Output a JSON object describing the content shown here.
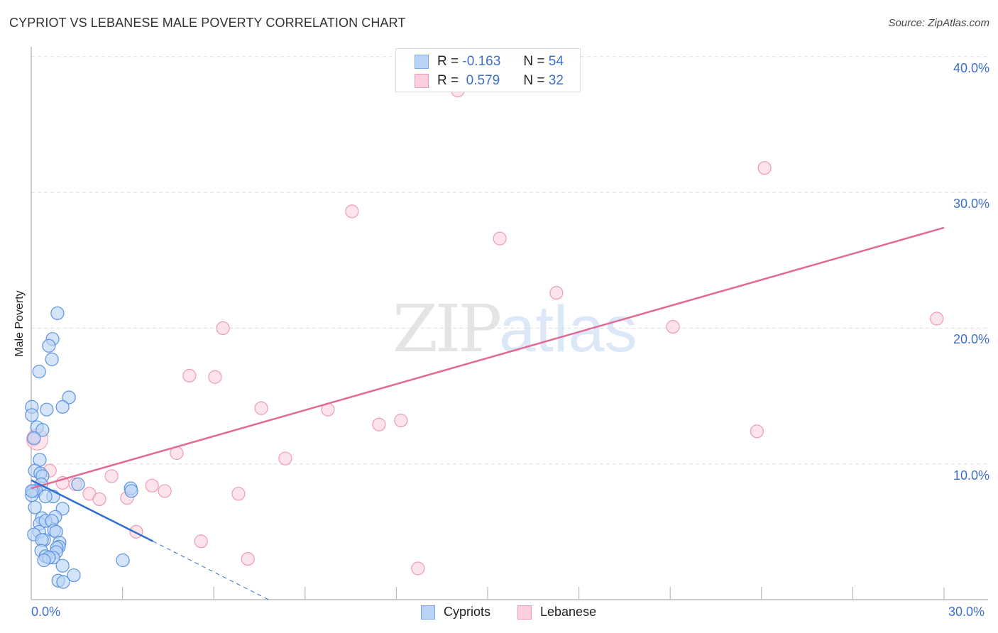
{
  "header": {
    "title": "CYPRIOT VS LEBANESE MALE POVERTY CORRELATION CHART",
    "source": "Source: ZipAtlas.com"
  },
  "legend_top": {
    "rows": [
      {
        "series": "Cypriots",
        "r_label": "R =",
        "r_value": "-0.163",
        "n_label": "N =",
        "n_value": "54"
      },
      {
        "series": "Lebanese",
        "r_label": "R =",
        "r_value": " 0.579",
        "n_label": "N =",
        "n_value": "32"
      }
    ]
  },
  "legend_bottom": {
    "items": [
      {
        "label": "Cypriots"
      },
      {
        "label": "Lebanese"
      }
    ]
  },
  "axes": {
    "y_label": "Male Poverty",
    "y_ticks": [
      "40.0%",
      "30.0%",
      "20.0%",
      "10.0%"
    ],
    "x_ticks": [
      "0.0%",
      "30.0%"
    ]
  },
  "watermark": {
    "zip": "ZIP",
    "atlas": "atlas"
  },
  "colors": {
    "cypriots_fill": "#b9d3f5",
    "cypriots_stroke": "#5b92e0",
    "cypriots_line": "#2f6fd0",
    "lebanese_fill": "#fbd0dc",
    "lebanese_stroke": "#ee9ab4",
    "lebanese_line": "#e06a92",
    "tick_text": "#3d6fc9",
    "grid": "#dddddd",
    "axis": "#bbbbbb"
  },
  "chart_data": {
    "type": "scatter",
    "title": "CYPRIOT VS LEBANESE MALE POVERTY CORRELATION CHART",
    "xlabel": "",
    "ylabel": "Male Poverty",
    "xlim": [
      0,
      30
    ],
    "ylim": [
      0,
      42
    ],
    "x_tick_labels": [
      "0.0%",
      "30.0%"
    ],
    "y_tick_values": [
      10,
      20,
      30,
      40
    ],
    "y_tick_labels": [
      "10.0%",
      "20.0%",
      "30.0%",
      "40.0%"
    ],
    "grid": {
      "horizontal": true,
      "vertical": false,
      "style": "dashed"
    },
    "legend_position": "top-center and bottom-center",
    "series": [
      {
        "name": "Cypriots",
        "R": -0.163,
        "N": 54,
        "trend": {
          "x0": 0.0,
          "y0": 8.8,
          "x1": 4.0,
          "y1": 4.3,
          "dashed_to_x": 7.8,
          "dashed_to_y": 0.0
        },
        "points": [
          [
            0.86,
            21.1
          ],
          [
            0.7,
            19.2
          ],
          [
            0.58,
            18.7
          ],
          [
            0.68,
            17.7
          ],
          [
            0.26,
            16.8
          ],
          [
            1.24,
            14.9
          ],
          [
            0.51,
            14.0
          ],
          [
            1.03,
            14.2
          ],
          [
            0.02,
            14.2
          ],
          [
            0.02,
            13.6
          ],
          [
            0.19,
            12.7
          ],
          [
            0.37,
            12.5
          ],
          [
            0.09,
            11.9
          ],
          [
            0.28,
            10.3
          ],
          [
            0.12,
            9.5
          ],
          [
            0.3,
            9.3
          ],
          [
            0.37,
            9.1
          ],
          [
            0.33,
            8.5
          ],
          [
            0.07,
            8.0
          ],
          [
            0.16,
            8.0
          ],
          [
            1.54,
            8.5
          ],
          [
            3.27,
            8.2
          ],
          [
            3.29,
            8.0
          ],
          [
            0.72,
            7.6
          ],
          [
            0.47,
            7.6
          ],
          [
            1.03,
            6.7
          ],
          [
            0.12,
            6.8
          ],
          [
            0.79,
            6.1
          ],
          [
            0.35,
            6.0
          ],
          [
            0.28,
            5.6
          ],
          [
            0.47,
            5.8
          ],
          [
            0.68,
            5.8
          ],
          [
            0.75,
            5.1
          ],
          [
            0.82,
            5.0
          ],
          [
            0.26,
            5.0
          ],
          [
            0.09,
            4.8
          ],
          [
            0.42,
            4.4
          ],
          [
            0.35,
            4.4
          ],
          [
            0.93,
            4.2
          ],
          [
            0.91,
            3.9
          ],
          [
            0.84,
            3.8
          ],
          [
            0.33,
            3.6
          ],
          [
            0.82,
            3.5
          ],
          [
            0.47,
            3.2
          ],
          [
            0.72,
            3.1
          ],
          [
            0.58,
            3.1
          ],
          [
            0.42,
            2.9
          ],
          [
            1.03,
            2.5
          ],
          [
            1.4,
            1.8
          ],
          [
            0.89,
            1.4
          ],
          [
            1.05,
            1.3
          ],
          [
            3.01,
            2.9
          ],
          [
            0.02,
            7.7
          ],
          [
            0.02,
            8.0
          ]
        ]
      },
      {
        "name": "Lebanese",
        "R": 0.579,
        "N": 32,
        "trend": {
          "x0": 0.0,
          "y0": 8.2,
          "x1": 30.0,
          "y1": 27.4
        },
        "points": [
          [
            14.02,
            37.5
          ],
          [
            24.1,
            31.8
          ],
          [
            10.54,
            28.6
          ],
          [
            15.4,
            26.6
          ],
          [
            17.26,
            22.6
          ],
          [
            6.3,
            20.0
          ],
          [
            21.09,
            20.1
          ],
          [
            29.76,
            20.7
          ],
          [
            5.2,
            16.5
          ],
          [
            6.04,
            16.4
          ],
          [
            7.56,
            14.1
          ],
          [
            9.75,
            14.0
          ],
          [
            12.15,
            13.2
          ],
          [
            11.43,
            12.9
          ],
          [
            23.85,
            12.4
          ],
          [
            0.09,
            11.8
          ],
          [
            4.78,
            10.8
          ],
          [
            8.35,
            10.4
          ],
          [
            0.61,
            9.5
          ],
          [
            2.64,
            9.1
          ],
          [
            1.03,
            8.6
          ],
          [
            1.45,
            8.5
          ],
          [
            3.97,
            8.4
          ],
          [
            4.39,
            8.0
          ],
          [
            1.91,
            7.8
          ],
          [
            2.24,
            7.4
          ],
          [
            3.15,
            7.5
          ],
          [
            6.81,
            7.8
          ],
          [
            3.45,
            5.0
          ],
          [
            5.58,
            4.3
          ],
          [
            7.12,
            3.0
          ],
          [
            12.71,
            2.3
          ]
        ]
      }
    ]
  }
}
